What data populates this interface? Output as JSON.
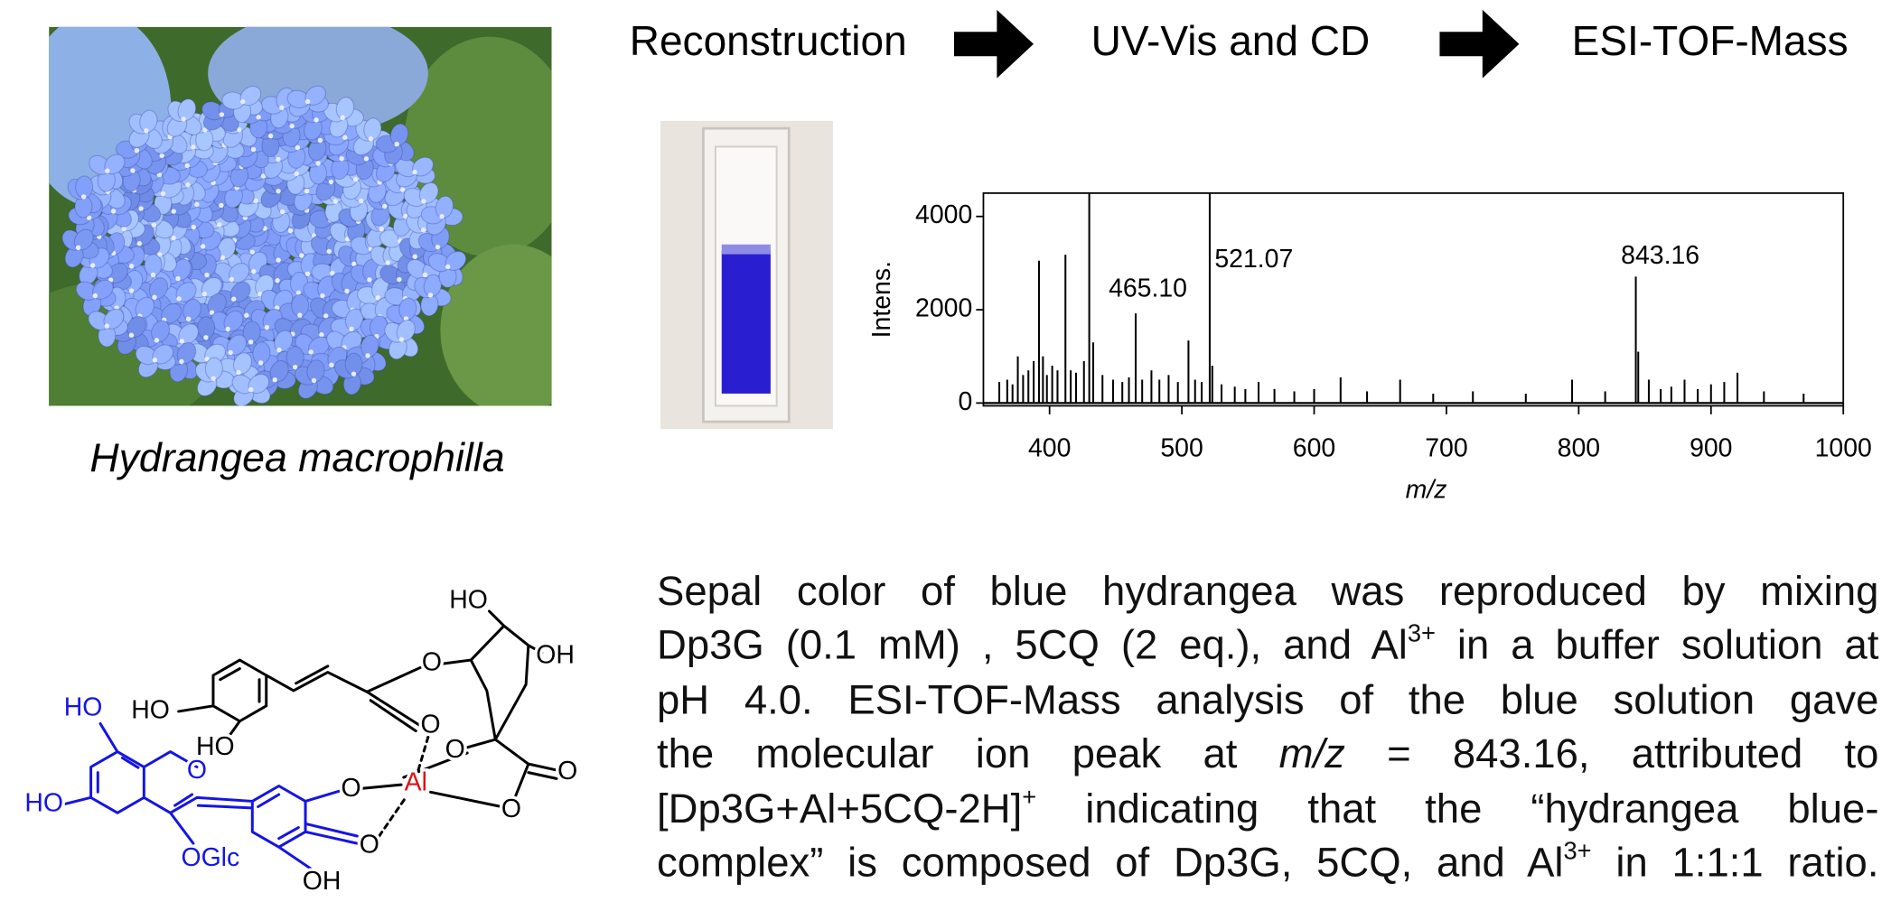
{
  "flow": [
    "Reconstruction",
    "UV-Vis and CD",
    "ESI-TOF-Mass"
  ],
  "photo_caption": "Hydrangea macrophilla",
  "chart_data": {
    "type": "spectrum",
    "x_label": "m/z",
    "y_label": "Intens.",
    "x": [
      362,
      368,
      372,
      376,
      380,
      384,
      388,
      392,
      395,
      398,
      402,
      406,
      412,
      416,
      420,
      426,
      430,
      433,
      440,
      448,
      455,
      460,
      465.1,
      470,
      477,
      483,
      490,
      497,
      505,
      510,
      515,
      521.07,
      523,
      530,
      540,
      548,
      558,
      570,
      585,
      600,
      620,
      640,
      665,
      690,
      720,
      760,
      795,
      820,
      843.16,
      845,
      853,
      862,
      870,
      880,
      890,
      900,
      910,
      920,
      940,
      970
    ],
    "values": [
      450,
      500,
      400,
      1000,
      600,
      700,
      900,
      3050,
      1000,
      600,
      800,
      700,
      3180,
      700,
      650,
      900,
      4500,
      1300,
      600,
      500,
      450,
      550,
      1920,
      500,
      700,
      500,
      600,
      450,
      1340,
      500,
      450,
      4500,
      800,
      400,
      350,
      300,
      450,
      300,
      250,
      300,
      550,
      250,
      500,
      200,
      250,
      200,
      500,
      250,
      2710,
      1100,
      500,
      300,
      350,
      500,
      300,
      400,
      450,
      650,
      250,
      200
    ],
    "color": "#000000",
    "xlim": [
      350,
      1000
    ],
    "ylim": [
      -60,
      4500
    ],
    "xticks": [
      400,
      500,
      600,
      700,
      800,
      900,
      1000
    ],
    "yticks": [
      0,
      2000,
      4000
    ],
    "annotations": [
      {
        "value": 465.1,
        "label": "465.10"
      },
      {
        "value": 521.07,
        "label": "521.07"
      },
      {
        "value": 843.16,
        "label": "843.16"
      }
    ]
  },
  "structure": {
    "labels": [
      "HO",
      "HO",
      "HO",
      "HO",
      "O",
      "OGlc",
      "OH",
      "O",
      "O",
      "Al",
      "O",
      "O",
      "O",
      "O",
      "O",
      "HO",
      "OH"
    ]
  },
  "paragraph": {
    "lines": [
      [
        {
          "text": "Sepal color of blue hydrangea was reproduced by mixing"
        }
      ],
      [
        {
          "text": "Dp3G (0.1 mM) , 5CQ (2 eq.), and Al"
        },
        {
          "sup": "3+"
        },
        {
          "text": " in a buffer solution at"
        }
      ],
      [
        {
          "text": "pH 4.0. ESI-TOF-Mass analysis of the blue solution gave"
        }
      ],
      [
        {
          "text": "the molecular ion peak at "
        },
        {
          "em": "m/z"
        },
        {
          "text": " = 843.16, attributed to"
        }
      ],
      [
        {
          "text": "[Dp3G+Al+5CQ-2H]"
        },
        {
          "sup": "+"
        },
        {
          "text": " indicating that the “hydrangea blue-"
        }
      ],
      [
        {
          "text": "complex” is composed of Dp3G, 5CQ, and Al"
        },
        {
          "sup": "3+"
        },
        {
          "text": " in 1:1:1 ratio."
        }
      ]
    ]
  }
}
